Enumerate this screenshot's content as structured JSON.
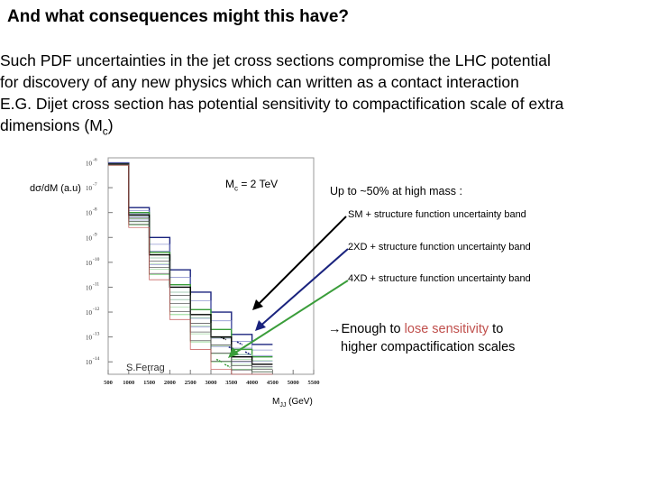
{
  "slide": {
    "title": "And what consequences might this have?",
    "lines": [
      "Such PDF uncertainties  in the jet cross sections compromise the LHC potential",
      "for discovery of any new physics which can written as a contact interaction",
      "E.G. Dijet cross section has potential sensitivity to compactification scale of extra",
      "dimensions (M"
    ],
    "line4_sub": "c",
    "line4_end": ")"
  },
  "annotations": {
    "mass_note": "Up to ~50% at high mass :",
    "sm_band": "SM + structure function uncertainty band",
    "xd2_band": "2XD + structure function uncertainty band",
    "xd4_band": "4XD + structure function uncertainty band",
    "conclusion_arrow": "→",
    "conclusion_a": "Enough to ",
    "conclusion_b": "lose sensitivity",
    "conclusion_c": " to",
    "conclusion_line2": "higher compactification scales"
  },
  "colors": {
    "sm": "#000000",
    "xd2": "#1a237e",
    "xd4": "#3a9d3a",
    "lose": "#c0504d"
  },
  "chart_data": {
    "type": "line",
    "ylabel": "dσ/dM (a.u)",
    "xlabel_main": "M",
    "xlabel_sub": "JJ",
    "xlabel_unit": " (GeV)",
    "inset_label_main": "M",
    "inset_label_sub": "c",
    "inset_label_rest": " = 2 TeV",
    "credit": "S.Ferrag",
    "yscale": "log",
    "ylim_exp": [
      -14.5,
      -5.8
    ],
    "xlim": [
      500,
      5500
    ],
    "x_ticks": [
      500,
      1000,
      1500,
      2000,
      2500,
      3000,
      3500,
      4000,
      4500,
      5000,
      5500
    ],
    "x_tick_labels": [
      "500",
      "1000",
      "1500",
      "2000",
      "2500",
      "3000",
      "3500",
      "4000",
      "4500",
      "5000",
      "5500"
    ],
    "y_tick_exps": [
      -6,
      -7,
      -8,
      -9,
      -10,
      -11,
      -12,
      -13,
      -14
    ],
    "y_tick_base": "10",
    "y_tick_exp_labels": [
      "-6",
      "-7",
      "-8",
      "-9",
      "-10",
      "-11",
      "-12",
      "-13",
      "-14"
    ],
    "bins": [
      500,
      1000,
      1500,
      2000,
      2500,
      3000,
      3500,
      4000,
      4500
    ],
    "series": [
      {
        "key": "xd2",
        "upper": [
          -6.0,
          -7.8,
          -9.0,
          -10.3,
          -11.2,
          -12.0,
          -12.9,
          -13.3
        ],
        "lower": [
          -6.05,
          -8.3,
          -10.1,
          -11.5,
          -12.6,
          -13.4,
          -14.0,
          -14.2
        ]
      },
      {
        "key": "xd4",
        "upper": [
          -6.05,
          -8.0,
          -9.6,
          -10.9,
          -11.9,
          -12.7,
          -13.5,
          -13.8
        ],
        "lower": [
          -6.1,
          -8.5,
          -10.5,
          -12.1,
          -13.2,
          -14.0,
          -14.3,
          -14.4
        ]
      },
      {
        "key": "sm",
        "upper": [
          -6.05,
          -8.1,
          -9.7,
          -11.0,
          -12.1,
          -13.0,
          -13.8,
          -14.1
        ],
        "lower": [
          -6.1,
          -8.6,
          -10.7,
          -12.3,
          -13.5,
          -14.3,
          -14.5,
          -14.5
        ]
      }
    ]
  }
}
